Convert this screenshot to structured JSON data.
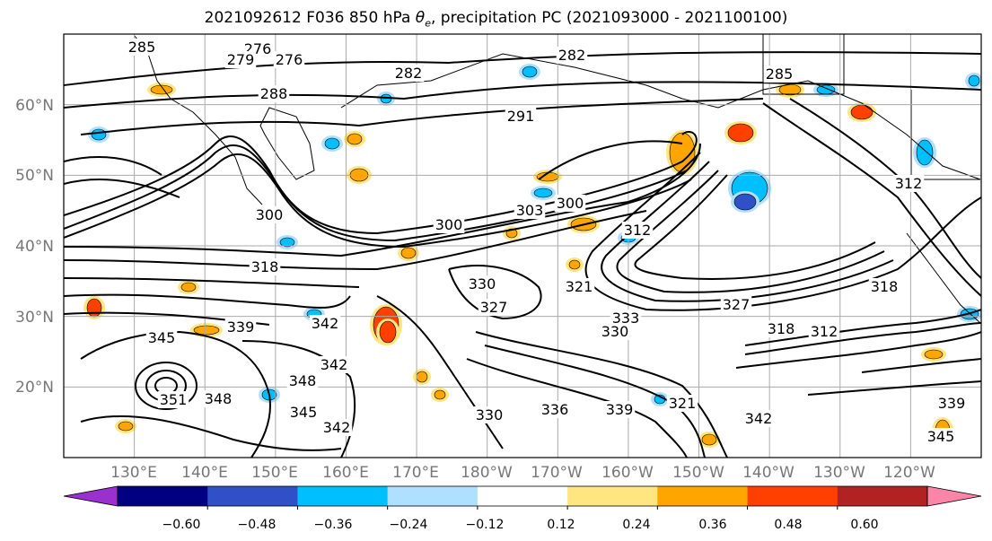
{
  "title": {
    "prefix": "2021092612 F036 850 hPa ",
    "symbol": "θ",
    "subscript": "e",
    "suffix": ", precipitation PC (2021093000 - 2021100100)"
  },
  "map": {
    "projection": "cylindrical",
    "lon_range": [
      120,
      250
    ],
    "lat_range": [
      10,
      70
    ],
    "lat_ticks": [
      "20°N",
      "30°N",
      "40°N",
      "50°N",
      "60°N"
    ],
    "lon_ticks": [
      "130°E",
      "140°E",
      "150°E",
      "160°E",
      "170°E",
      "180°W",
      "170°W",
      "160°W",
      "150°W",
      "140°W",
      "130°W",
      "120°W"
    ],
    "contour_labels": [
      "285",
      "276",
      "279",
      "276",
      "282",
      "282",
      "288",
      "291",
      "285",
      "300",
      "303",
      "300",
      "318",
      "300",
      "312",
      "327",
      "330",
      "339",
      "342",
      "345",
      "351",
      "348",
      "348",
      "342",
      "345",
      "342",
      "330",
      "336",
      "339",
      "333",
      "330",
      "321",
      "318",
      "312",
      "318",
      "327",
      "342",
      "339",
      "345",
      "312",
      "321"
    ],
    "grid": true
  },
  "colorbar": {
    "ticks": [
      "−0.60",
      "−0.48",
      "−0.36",
      "−0.24",
      "−0.12",
      "0.12",
      "0.24",
      "0.36",
      "0.48",
      "0.60"
    ],
    "colors": [
      "#9b30d0",
      "#000080",
      "#3050c8",
      "#00bfff",
      "#b0e0ff",
      "#ffffff",
      "#ffe680",
      "#ffa500",
      "#ff4000",
      "#b22222",
      "#ff85a8"
    ],
    "extend": "both"
  },
  "shading_colors": {
    "neg_light": "#b0e0ff",
    "neg_mid": "#00bfff",
    "neg_dark": "#3050c8",
    "pos_light": "#ffe680",
    "pos_mid": "#ffa500",
    "pos_dark": "#ff4000"
  }
}
